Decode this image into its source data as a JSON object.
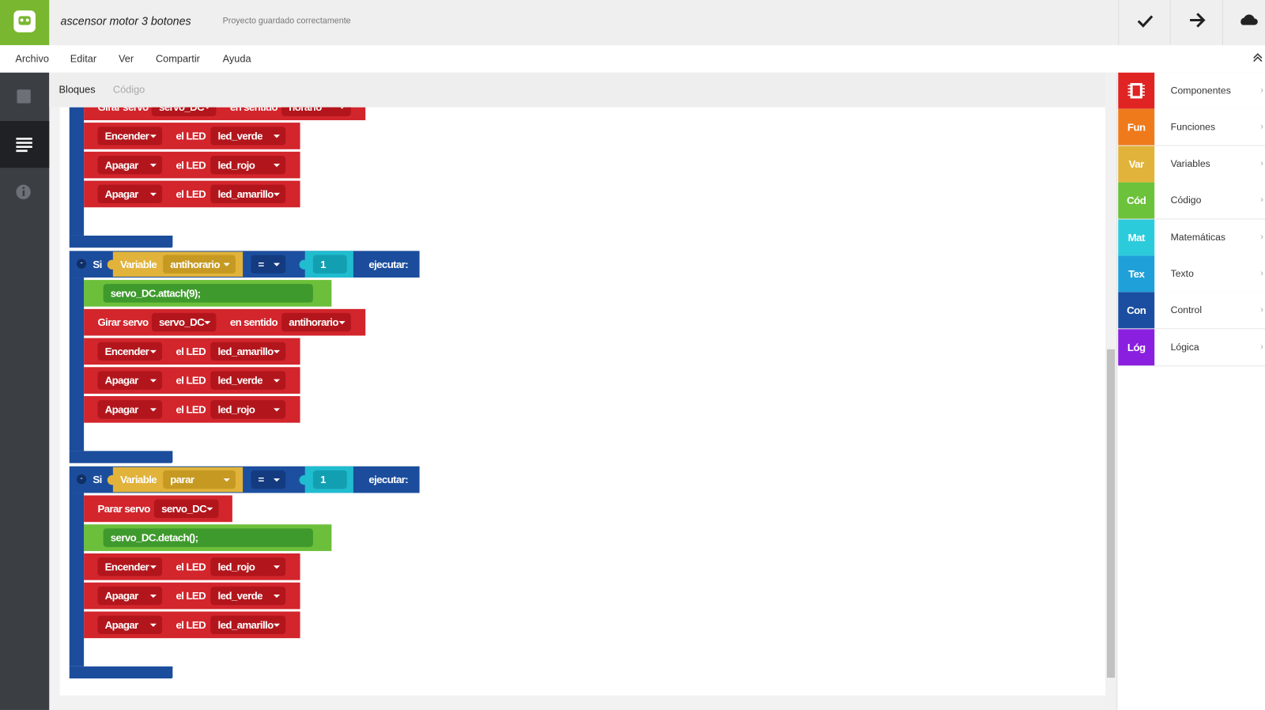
{
  "header": {
    "project_title": "ascensor motor 3 botones",
    "status": "Proyecto guardado correctamente"
  },
  "menu": [
    "Archivo",
    "Editar",
    "Ver",
    "Compartir",
    "Ayuda"
  ],
  "tabs": [
    "Bloques",
    "Código"
  ],
  "toolbox": [
    {
      "label": "Componentes"
    },
    {
      "abbr": "Fun",
      "label": "Funciones"
    },
    {
      "abbr": "Var",
      "label": "Variables"
    },
    {
      "abbr": "Cód",
      "label": "Código"
    },
    {
      "abbr": "Mat",
      "label": "Matemáticas"
    },
    {
      "abbr": "Tex",
      "label": "Texto"
    },
    {
      "abbr": "Con",
      "label": "Control"
    },
    {
      "abbr": "Lóg",
      "label": "Lógica"
    }
  ],
  "canvas": {
    "top_block": {
      "statements": [
        {
          "label": "Girar servo",
          "servo": "servo_DC",
          "direction_label": "en sentido",
          "direction": "horario"
        },
        {
          "action": "Encender",
          "label": "el LED",
          "led": "led_verde"
        },
        {
          "action": "Apagar",
          "label": "el LED",
          "led": "led_rojo"
        },
        {
          "action": "Apagar",
          "label": "el LED",
          "led": "led_amarillo"
        }
      ]
    },
    "if_blocks": [
      {
        "keyword": "Si",
        "var_label": "Variable",
        "variable": "antihorario",
        "operator": "=",
        "value": 1,
        "exec_label": "ejecutar:",
        "statements": [
          {
            "code": "servo_DC.attach(9);"
          },
          {
            "label": "Girar servo",
            "servo": "servo_DC",
            "direction_label": "en sentido",
            "direction": "antihorario"
          },
          {
            "action": "Encender",
            "label": "el LED",
            "led": "led_amarillo"
          },
          {
            "action": "Apagar",
            "label": "el LED",
            "led": "led_verde"
          },
          {
            "action": "Apagar",
            "label": "el LED",
            "led": "led_rojo"
          }
        ]
      },
      {
        "keyword": "Si",
        "var_label": "Variable",
        "variable": "parar",
        "operator": "=",
        "value": 1,
        "exec_label": "ejecutar:",
        "statements": [
          {
            "label": "Parar servo",
            "servo": "servo_DC"
          },
          {
            "code": "servo_DC.detach();"
          },
          {
            "action": "Encender",
            "label": "el LED",
            "led": "led_rojo"
          },
          {
            "action": "Apagar",
            "label": "el LED",
            "led": "led_verde"
          },
          {
            "action": "Apagar",
            "label": "el LED",
            "led": "led_amarillo"
          }
        ]
      }
    ]
  }
}
